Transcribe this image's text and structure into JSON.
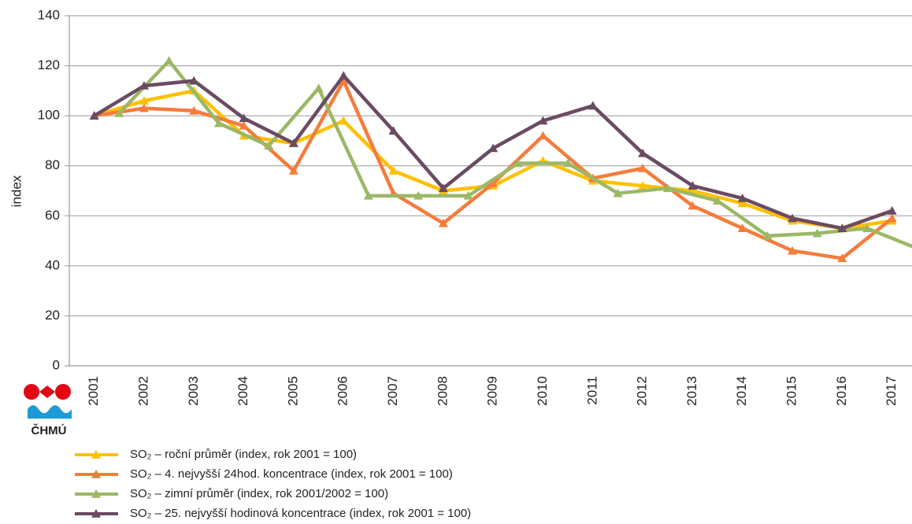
{
  "chart_data": {
    "type": "line",
    "y_label": "index",
    "logo": "ČHMÚ",
    "ylim": [
      0,
      140
    ],
    "yticks": [
      0,
      20,
      40,
      60,
      80,
      100,
      120,
      140
    ],
    "grid": true,
    "xlim": [
      2000.5,
      2017.4
    ],
    "xticks": [
      2001,
      2002,
      2003,
      2004,
      2005,
      2006,
      2007,
      2008,
      2009,
      2010,
      2011,
      2012,
      2013,
      2014,
      2015,
      2016,
      2017
    ],
    "series": [
      {
        "name": "SO₂ – roční průměr (index, rok 2001 = 100)",
        "color": "#ffc000",
        "x": [
          2001,
          2002,
          2003,
          2004,
          2005,
          2006,
          2007,
          2008,
          2009,
          2010,
          2011,
          2012,
          2013,
          2014,
          2015,
          2016,
          2017
        ],
        "values": [
          100,
          106,
          110,
          92,
          89,
          98,
          78,
          70,
          72,
          82,
          74,
          72,
          70,
          65,
          58,
          55,
          58
        ]
      },
      {
        "name": "SO₂ – 4. nejvyšší 24hod. koncentrace (index, rok 2001 = 100)",
        "color": "#f47c3c",
        "x": [
          2001,
          2002,
          2003,
          2004,
          2005,
          2006,
          2007,
          2008,
          2009,
          2010,
          2011,
          2012,
          2013,
          2014,
          2015,
          2016,
          2017
        ],
        "values": [
          100,
          103,
          102,
          96,
          78,
          114,
          69,
          57,
          73,
          92,
          75,
          79,
          64,
          55,
          46,
          43,
          59
        ]
      },
      {
        "name": "SO₂ – zimní průměr (index, rok 2001/2002 = 100)",
        "color": "#9bb866",
        "x": [
          2001.5,
          2002.5,
          2003.5,
          2004.5,
          2005.5,
          2006.5,
          2007.5,
          2008.5,
          2009.5,
          2010.5,
          2011.5,
          2012.5,
          2013.5,
          2014.5,
          2015.5,
          2016.5,
          2017.5
        ],
        "values": [
          101,
          122,
          97,
          88,
          111,
          68,
          68,
          68,
          81,
          81,
          69,
          71,
          66,
          52,
          53,
          55,
          47
        ]
      },
      {
        "name": "SO₂ – 25. nejvyšší hodinová koncentrace (index, rok 2001 = 100)",
        "color": "#6b4a63",
        "x": [
          2001,
          2002,
          2003,
          2004,
          2005,
          2006,
          2007,
          2008,
          2009,
          2010,
          2011,
          2012,
          2013,
          2014,
          2015,
          2016,
          2017
        ],
        "values": [
          100,
          112,
          114,
          99,
          89,
          116,
          94,
          71,
          87,
          98,
          104,
          85,
          72,
          67,
          59,
          55,
          62
        ]
      }
    ]
  }
}
